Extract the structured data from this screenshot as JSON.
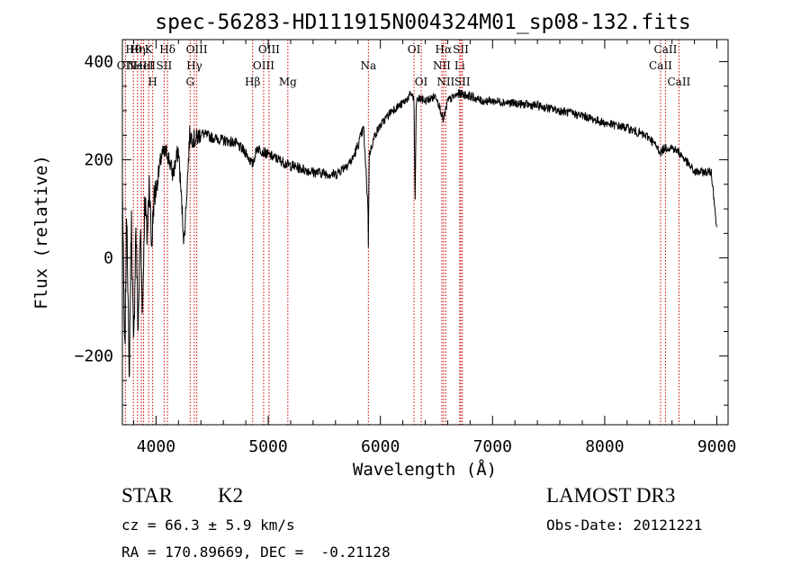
{
  "chart_data": {
    "type": "line",
    "title": "spec-56283-HD111915N004324M01_sp08-132.fits",
    "xlabel": "Wavelength (Å)",
    "ylabel": "Flux (relative)",
    "xlim": [
      3700,
      9100
    ],
    "ylim": [
      -340,
      445
    ],
    "xticks": [
      4000,
      5000,
      6000,
      7000,
      8000,
      9000
    ],
    "yticks": [
      -200,
      0,
      200,
      400
    ],
    "ytick_labels": [
      "−200",
      "0",
      "200",
      "400"
    ],
    "grid": false,
    "series": [
      {
        "x": [
          3700,
          3720,
          3740,
          3760,
          3780,
          3800,
          3820,
          3840,
          3860,
          3880,
          3900,
          3920,
          3940,
          3960,
          3980,
          4000,
          4050,
          4100,
          4150,
          4200,
          4250,
          4300,
          4350,
          4400,
          4500,
          4600,
          4700,
          4800,
          4860,
          4900,
          5000,
          5100,
          5175,
          5250,
          5400,
          5600,
          5750,
          5800,
          5850,
          5890,
          5893,
          5896,
          5900,
          5950,
          6000,
          6100,
          6200,
          6280,
          6300,
          6310,
          6320,
          6350,
          6400,
          6500,
          6563,
          6600,
          6700,
          6800,
          6900,
          7000,
          7200,
          7400,
          7600,
          7800,
          8000,
          8200,
          8400,
          8500,
          8540,
          8600,
          8662,
          8700,
          8800,
          8900,
          8950,
          8980,
          9000
        ],
        "y": [
          150,
          -210,
          110,
          -260,
          90,
          -200,
          70,
          -150,
          60,
          -110,
          130,
          40,
          160,
          20,
          120,
          140,
          210,
          215,
          170,
          220,
          30,
          250,
          240,
          255,
          245,
          240,
          235,
          215,
          190,
          225,
          210,
          200,
          190,
          185,
          175,
          170,
          200,
          230,
          265,
          100,
          15,
          110,
          210,
          250,
          270,
          300,
          315,
          335,
          320,
          115,
          320,
          325,
          320,
          330,
          280,
          320,
          335,
          330,
          320,
          320,
          315,
          310,
          300,
          290,
          275,
          265,
          245,
          215,
          225,
          225,
          215,
          205,
          175,
          175,
          175,
          110,
          50
        ]
      }
    ],
    "lines": [
      {
        "x": 3727,
        "label": "OII",
        "row": 1
      },
      {
        "x": 3798,
        "label": "Hθ",
        "row": 0
      },
      {
        "x": 3835,
        "label": "Hη",
        "row": 0
      },
      {
        "x": 3869,
        "label": "NeIII",
        "row": 1
      },
      {
        "x": 3889,
        "label": "HeI",
        "row": 1
      },
      {
        "x": 3934,
        "label": "K",
        "row": 0
      },
      {
        "x": 3970,
        "label": "H",
        "row": 2
      },
      {
        "x": 4072,
        "label": "SII",
        "row": 1
      },
      {
        "x": 4102,
        "label": "Hδ",
        "row": 0
      },
      {
        "x": 4304,
        "label": "G",
        "row": 2
      },
      {
        "x": 4341,
        "label": "Hγ",
        "row": 1
      },
      {
        "x": 4363,
        "label": "OIII",
        "row": 0
      },
      {
        "x": 4861,
        "label": "Hβ",
        "row": 2
      },
      {
        "x": 4959,
        "label": "OIII",
        "row": 1
      },
      {
        "x": 5007,
        "label": "OIII",
        "row": 0
      },
      {
        "x": 5175,
        "label": "Mg",
        "row": 2
      },
      {
        "x": 5893,
        "label": "Na",
        "row": 1
      },
      {
        "x": 6300,
        "label": "OI",
        "row": 0
      },
      {
        "x": 6364,
        "label": "OI",
        "row": 2
      },
      {
        "x": 6548,
        "label": "NII",
        "row": 1
      },
      {
        "x": 6563,
        "label": "Hα",
        "row": 0
      },
      {
        "x": 6583,
        "label": "NII",
        "row": 2
      },
      {
        "x": 6707,
        "label": "Li",
        "row": 1
      },
      {
        "x": 6717,
        "label": "SII",
        "row": 0
      },
      {
        "x": 6731,
        "label": "SII",
        "row": 2
      },
      {
        "x": 8498,
        "label": "CaII",
        "row": 1
      },
      {
        "x": 8542,
        "label": "CaII",
        "row": 0
      },
      {
        "x": 8662,
        "label": "CaII",
        "row": 2
      }
    ]
  },
  "info": {
    "object_class": "STAR",
    "subclass": "K2",
    "survey": "LAMOST DR3",
    "cz": "cz = 66.3 ± 5.9 km/s",
    "obs_date": "Obs-Date: 20121221",
    "coords": "RA = 170.89669, DEC =  -0.21128"
  }
}
